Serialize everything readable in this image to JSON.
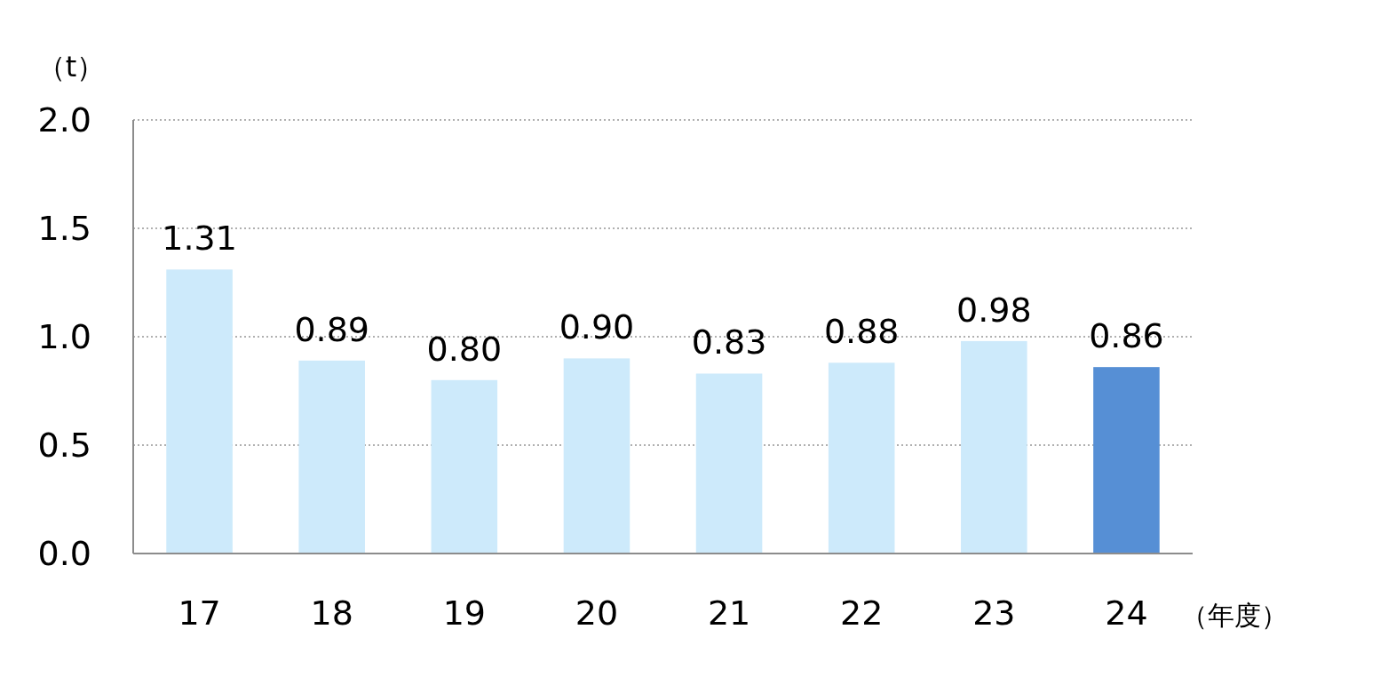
{
  "chart_data": {
    "type": "bar",
    "ylabel": "（t）",
    "xlabel": "（年度）",
    "categories": [
      "17",
      "18",
      "19",
      "20",
      "21",
      "22",
      "23",
      "24"
    ],
    "values": [
      1.31,
      0.89,
      0.8,
      0.9,
      0.83,
      0.88,
      0.98,
      0.86
    ],
    "colors": [
      "#cdeafb",
      "#cdeafb",
      "#cdeafb",
      "#cdeafb",
      "#cdeafb",
      "#cdeafb",
      "#cdeafb",
      "#568fd5"
    ],
    "value_labels": [
      "1.31",
      "0.89",
      "0.80",
      "0.90",
      "0.83",
      "0.88",
      "0.98",
      "0.86"
    ],
    "ylim": [
      0,
      2
    ],
    "yticks": [
      {
        "value": 0,
        "label": "0.0"
      },
      {
        "value": 0.5,
        "label": "0.5"
      },
      {
        "value": 1,
        "label": "1.0"
      },
      {
        "value": 1.5,
        "label": "1.5"
      },
      {
        "value": 2,
        "label": "2.0"
      }
    ],
    "grid": "y"
  }
}
